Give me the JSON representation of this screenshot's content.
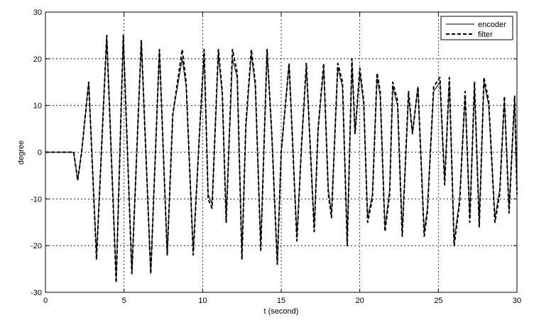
{
  "chart_data": {
    "type": "line",
    "title": "",
    "xlabel": "t (second)",
    "ylabel": "degree",
    "xlim": [
      0,
      30
    ],
    "ylim": [
      -30,
      30
    ],
    "xticks": [
      "0",
      "5",
      "10",
      "15",
      "20",
      "25",
      "30"
    ],
    "yticks": [
      "30",
      "20",
      "10",
      "0",
      "-10",
      "-20",
      "-30"
    ],
    "grid": true,
    "legend_position": "top-right",
    "series": [
      {
        "name": "encoder",
        "style": "solid",
        "color": "#000000",
        "x": [
          0,
          1.8,
          2.05,
          2.3,
          2.75,
          3.25,
          3.9,
          4.5,
          4.95,
          5.5,
          6.1,
          6.7,
          7.25,
          7.75,
          8.1,
          8.7,
          8.95,
          9.4,
          9.8,
          10.1,
          10.35,
          10.6,
          11.0,
          11.25,
          11.5,
          11.9,
          12.2,
          12.5,
          12.75,
          13.1,
          13.35,
          13.7,
          14.1,
          14.4,
          14.75,
          15.0,
          15.5,
          16.0,
          16.3,
          16.6,
          17.1,
          17.35,
          17.7,
          18.0,
          18.2,
          18.6,
          18.9,
          19.2,
          19.5,
          19.7,
          20.0,
          20.25,
          20.5,
          20.8,
          21.1,
          21.3,
          21.6,
          21.9,
          22.1,
          22.4,
          22.7,
          23.1,
          23.35,
          23.7,
          24.1,
          24.3,
          24.7,
          25.1,
          25.4,
          25.7,
          26.0,
          26.35,
          26.7,
          27.0,
          27.3,
          27.6,
          27.9,
          28.2,
          28.6,
          28.9,
          29.2,
          29.5,
          29.85,
          30
        ],
        "y": [
          0,
          0,
          -6,
          0,
          15,
          -22,
          25,
          -27,
          25,
          -26,
          24,
          -26,
          22,
          -22,
          8,
          20,
          14,
          -21,
          4,
          21,
          -9,
          -11,
          21,
          12,
          -14,
          20,
          16,
          -22,
          5,
          21,
          14,
          -20,
          22,
          4,
          -24,
          0,
          19,
          -18,
          2,
          18,
          -16,
          5,
          18,
          -8,
          -13,
          18,
          14,
          -19,
          19,
          4,
          17,
          10,
          -14,
          -9,
          16,
          12,
          -16,
          -8,
          14,
          10,
          -17,
          12,
          4,
          14,
          -17,
          -12,
          13,
          15,
          -6,
          15,
          -19,
          -10,
          12,
          -14,
          14,
          -15,
          15,
          10,
          -14,
          -8,
          11,
          -12,
          11,
          -8
        ]
      },
      {
        "name": "filter",
        "style": "dashed",
        "color": "#000000",
        "x": [
          0,
          1.8,
          2.05,
          2.3,
          2.75,
          3.25,
          3.9,
          4.5,
          4.95,
          5.5,
          6.1,
          6.7,
          7.25,
          7.75,
          8.1,
          8.7,
          8.95,
          9.4,
          9.8,
          10.1,
          10.35,
          10.6,
          11.0,
          11.25,
          11.5,
          11.9,
          12.2,
          12.5,
          12.75,
          13.1,
          13.35,
          13.7,
          14.1,
          14.4,
          14.75,
          15.0,
          15.5,
          16.0,
          16.3,
          16.6,
          17.1,
          17.35,
          17.7,
          18.0,
          18.2,
          18.6,
          18.9,
          19.2,
          19.5,
          19.7,
          20.0,
          20.25,
          20.5,
          20.8,
          21.1,
          21.3,
          21.6,
          21.9,
          22.1,
          22.4,
          22.7,
          23.1,
          23.35,
          23.7,
          24.1,
          24.3,
          24.7,
          25.1,
          25.4,
          25.7,
          26.0,
          26.35,
          26.7,
          27.0,
          27.3,
          27.6,
          27.9,
          28.2,
          28.6,
          28.9,
          29.2,
          29.5,
          29.85,
          30
        ],
        "y": [
          0,
          0,
          -6,
          0,
          15,
          -23,
          25,
          -28,
          25,
          -26,
          24,
          -26,
          22,
          -22,
          8,
          22,
          15,
          -22,
          4,
          22,
          -10,
          -12,
          22,
          13,
          -15,
          22,
          17,
          -23,
          6,
          22,
          15,
          -21,
          22,
          4,
          -24,
          0,
          19,
          -19,
          2,
          19,
          -17,
          5,
          19,
          -9,
          -14,
          19,
          15,
          -20,
          20,
          4,
          18,
          11,
          -15,
          -10,
          17,
          13,
          -17,
          -9,
          15,
          11,
          -18,
          13,
          4,
          14,
          -18,
          -13,
          14,
          16,
          -7,
          16,
          -20,
          -11,
          13,
          -15,
          15,
          -16,
          16,
          11,
          -15,
          -9,
          12,
          -13,
          12,
          -9
        ]
      }
    ]
  }
}
